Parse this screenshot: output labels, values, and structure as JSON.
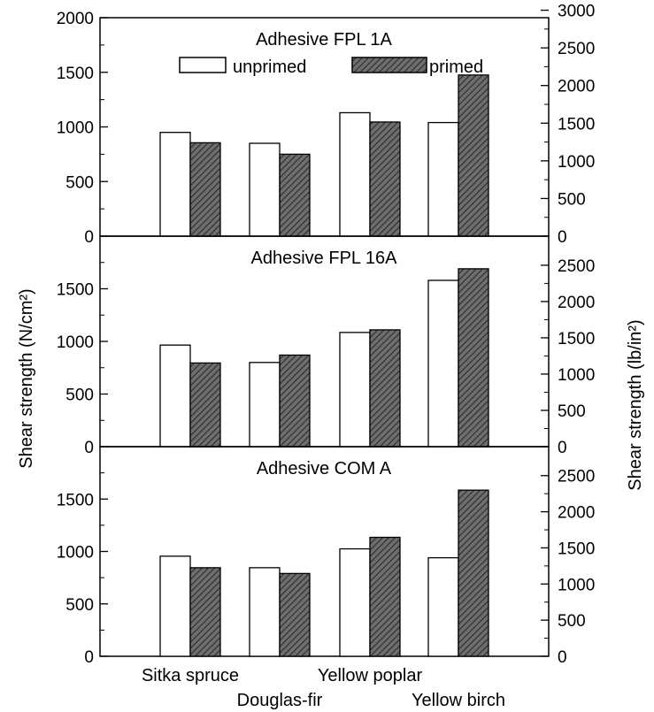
{
  "figure": {
    "ylabel_left": "Shear strength (N/cm²)",
    "ylabel_right": "Shear strength (lb/in²)"
  },
  "legend": {
    "items": [
      {
        "name": "unprimed",
        "color": "#ffffff"
      },
      {
        "name": "primed",
        "color": "#555555"
      }
    ]
  },
  "chart_data": [
    {
      "type": "bar",
      "title": "Adhesive FPL 1A",
      "categories": [
        "Sitka spruce",
        "Douglas-fir",
        "Yellow poplar",
        "Yellow birch"
      ],
      "series": [
        {
          "name": "unprimed",
          "values": [
            950,
            850,
            1130,
            1040
          ]
        },
        {
          "name": "primed",
          "values": [
            855,
            750,
            1045,
            1475
          ]
        }
      ],
      "ylim": [
        0,
        2000
      ],
      "yticks_left": [
        "0",
        "500",
        "1000",
        "1500",
        "2000"
      ],
      "yticks_right": [
        "0",
        "500",
        "1000",
        "1500",
        "2000",
        "2500",
        "3000"
      ]
    },
    {
      "type": "bar",
      "title": "Adhesive FPL 16A",
      "categories": [
        "Sitka spruce",
        "Douglas-fir",
        "Yellow poplar",
        "Yellow birch"
      ],
      "series": [
        {
          "name": "unprimed",
          "values": [
            965,
            800,
            1085,
            1580
          ]
        },
        {
          "name": "primed",
          "values": [
            795,
            870,
            1110,
            1690
          ]
        }
      ],
      "ylim": [
        0,
        2000
      ],
      "yticks_left": [
        "0",
        "500",
        "1000",
        "1500"
      ],
      "yticks_right": [
        "0",
        "500",
        "1000",
        "1500",
        "2000",
        "2500"
      ]
    },
    {
      "type": "bar",
      "title": "Adhesive COM A",
      "categories": [
        "Sitka spruce",
        "Douglas-fir",
        "Yellow poplar",
        "Yellow birch"
      ],
      "series": [
        {
          "name": "unprimed",
          "values": [
            955,
            845,
            1025,
            940
          ]
        },
        {
          "name": "primed",
          "values": [
            845,
            790,
            1135,
            1585
          ]
        }
      ],
      "ylim": [
        0,
        2000
      ],
      "yticks_left": [
        "0",
        "500",
        "1000",
        "1500"
      ],
      "yticks_right": [
        "0",
        "500",
        "1000",
        "1500",
        "2000",
        "2500"
      ]
    }
  ]
}
